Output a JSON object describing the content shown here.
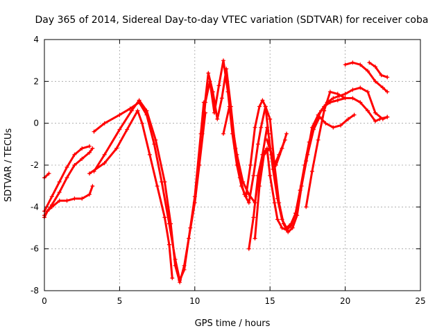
{
  "chart_data": {
    "type": "scatter",
    "title": "Day 365 of 2014, Sidereal Day-to-day VTEC variation (SDTVAR) for receiver coba",
    "xlabel": "GPS time / hours",
    "ylabel": "SDTVAR / TECUs",
    "xlim": [
      0,
      25
    ],
    "ylim": [
      -8,
      4
    ],
    "xticks": [
      0,
      5,
      10,
      15,
      20,
      25
    ],
    "yticks": [
      -8,
      -6,
      -4,
      -2,
      0,
      2,
      4
    ],
    "grid": true,
    "marker": "plus",
    "color": "#ff0000",
    "series": [
      {
        "x": [
          0.0,
          0.2,
          0.5,
          1.0,
          1.5,
          2.0,
          2.5,
          3.0,
          3.2
        ],
        "y": [
          -4.5,
          -4.2,
          -4.0,
          -3.7,
          -3.7,
          -3.6,
          -3.6,
          -3.4,
          -3.0
        ]
      },
      {
        "x": [
          0.0,
          0.5,
          1.0,
          1.5,
          2.0,
          2.5,
          3.0,
          3.2
        ],
        "y": [
          -4.4,
          -3.9,
          -3.3,
          -2.6,
          -2.0,
          -1.7,
          -1.4,
          -1.2
        ]
      },
      {
        "x": [
          0.0,
          0.5,
          1.0,
          1.5,
          2.0,
          2.5,
          3.0
        ],
        "y": [
          -4.2,
          -3.5,
          -2.8,
          -2.1,
          -1.5,
          -1.2,
          -1.1
        ]
      },
      {
        "x": [
          0.0,
          0.3
        ],
        "y": [
          -2.6,
          -2.4
        ]
      },
      {
        "x": [
          3.3,
          4.0,
          5.0,
          5.7,
          6.3,
          6.8,
          7.3,
          7.8,
          8.3,
          8.7,
          9.0,
          9.3,
          9.7,
          10.0,
          10.4,
          10.6
        ],
        "y": [
          -0.4,
          0.0,
          0.4,
          0.7,
          1.0,
          0.4,
          -1.0,
          -2.8,
          -4.8,
          -6.5,
          -7.5,
          -7.0,
          -5.0,
          -3.5,
          -0.5,
          1.0
        ]
      },
      {
        "x": [
          3.3,
          4.0,
          5.0,
          5.8,
          6.3,
          6.8,
          7.4,
          8.0,
          8.4,
          8.7,
          9.0,
          9.3,
          9.6,
          10.0,
          10.3,
          10.7
        ],
        "y": [
          -2.3,
          -1.5,
          -0.3,
          0.6,
          1.1,
          0.6,
          -0.8,
          -2.8,
          -4.8,
          -6.8,
          -7.6,
          -6.8,
          -5.5,
          -3.8,
          -2.0,
          0.5
        ]
      },
      {
        "x": [
          3.0,
          4.0,
          4.8,
          5.5,
          6.2,
          6.5,
          7.0,
          7.5,
          8.0,
          8.3,
          8.5
        ],
        "y": [
          -2.4,
          -1.9,
          -1.2,
          -0.3,
          0.6,
          0.0,
          -1.5,
          -3.0,
          -4.5,
          -5.8,
          -7.4
        ]
      },
      {
        "x": [
          10.5,
          10.7,
          11.0,
          11.3,
          11.6,
          11.9,
          12.2,
          12.5,
          12.8,
          13.1,
          13.4,
          13.7,
          14.0,
          14.3,
          14.5,
          14.7,
          14.9,
          15.2,
          15.5,
          15.8,
          16.1,
          16.4,
          16.7,
          17.0,
          17.4,
          17.8,
          18.2,
          18.6,
          19.0,
          19.5,
          20.0,
          20.5,
          21.0,
          21.5,
          22.0,
          22.3,
          22.8
        ],
        "y": [
          -0.5,
          1.0,
          2.0,
          0.5,
          1.8,
          3.0,
          1.5,
          -0.5,
          -2.0,
          -3.0,
          -3.5,
          -2.0,
          -0.2,
          0.8,
          1.1,
          0.8,
          -0.5,
          -2.2,
          -3.6,
          -4.6,
          -5.0,
          -4.8,
          -4.3,
          -3.2,
          -1.8,
          -0.2,
          0.4,
          0.8,
          1.0,
          1.1,
          1.2,
          1.2,
          1.0,
          0.6,
          0.1,
          0.2,
          0.3
        ]
      },
      {
        "x": [
          10.6,
          10.9,
          11.2,
          11.5,
          11.8,
          12.1,
          12.4,
          12.7,
          13.0,
          13.3,
          13.6,
          13.9,
          14.2,
          14.4,
          14.7,
          15.0,
          15.3,
          15.6,
          15.9,
          16.2,
          16.5,
          16.8,
          17.1,
          17.5,
          17.9,
          18.3,
          18.7,
          19.2,
          19.7,
          20.2,
          20.6
        ],
        "y": [
          0.5,
          2.4,
          1.5,
          0.2,
          1.2,
          2.6,
          0.8,
          -1.2,
          -2.6,
          -3.4,
          -3.8,
          -2.5,
          -1.0,
          -0.2,
          0.8,
          0.2,
          -2.0,
          -3.8,
          -4.8,
          -5.2,
          -5.0,
          -4.4,
          -3.0,
          -1.5,
          -0.3,
          0.3,
          0.0,
          -0.2,
          -0.1,
          0.2,
          0.4
        ]
      },
      {
        "x": [
          13.6,
          13.9,
          14.2,
          14.5,
          14.8,
          15.0,
          15.3,
          15.5,
          15.8,
          16.1,
          16.4,
          16.7,
          17.0,
          17.3,
          17.6,
          18.0,
          18.4,
          18.8,
          19.2,
          19.6,
          20.0,
          20.5,
          21.0,
          21.5,
          22.0,
          22.5,
          22.8
        ],
        "y": [
          -6.0,
          -4.5,
          -2.5,
          -1.5,
          -1.2,
          -2.5,
          -3.8,
          -4.6,
          -5.0,
          -5.1,
          -4.9,
          -4.3,
          -3.2,
          -2.0,
          -0.9,
          0.0,
          0.6,
          1.0,
          1.2,
          1.3,
          1.4,
          1.6,
          1.7,
          1.5,
          0.5,
          0.2,
          0.3
        ]
      },
      {
        "x": [
          14.0,
          14.3,
          14.6,
          15.0,
          15.3,
          15.6,
          16.0
        ],
        "y": [
          -5.5,
          -3.0,
          -1.5,
          -1.2,
          -2.0,
          -1.5,
          -0.8
        ]
      },
      {
        "x": [
          17.4,
          17.8,
          18.2,
          18.6,
          19.0,
          19.5,
          20.0
        ],
        "y": [
          -4.0,
          -2.3,
          -0.8,
          0.6,
          1.5,
          1.4,
          1.2
        ]
      },
      {
        "x": [
          20.0,
          20.5,
          21.0,
          21.5,
          22.0,
          22.5,
          22.8
        ],
        "y": [
          2.8,
          2.9,
          2.8,
          2.5,
          2.0,
          1.7,
          1.5
        ]
      },
      {
        "x": [
          21.6,
          22.0,
          22.4,
          22.8
        ],
        "y": [
          2.9,
          2.7,
          2.3,
          2.2
        ]
      },
      {
        "x": [
          14.8,
          15.1,
          15.4,
          15.8,
          16.1
        ],
        "y": [
          -0.8,
          -1.5,
          -2.0,
          -1.2,
          -0.5
        ]
      },
      {
        "x": [
          11.9,
          12.3,
          12.8,
          13.2,
          13.6,
          14.0,
          14.5,
          14.8
        ],
        "y": [
          -0.5,
          0.8,
          -1.5,
          -2.8,
          -3.4,
          -3.8,
          -1.5,
          -0.2
        ]
      }
    ]
  }
}
